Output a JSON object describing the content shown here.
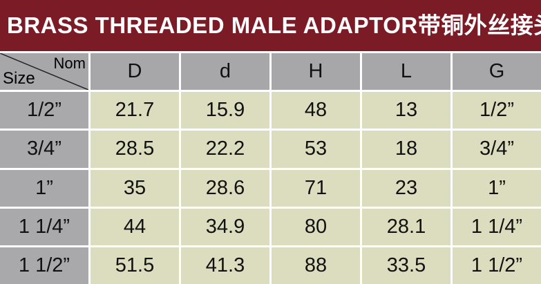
{
  "header": {
    "title": "BRASS THREADED MALE ADAPTOR带铜外丝接头"
  },
  "table": {
    "corner": {
      "top": "Nom",
      "bottom": "Size"
    },
    "columns": [
      "D",
      "d",
      "H",
      "L",
      "G"
    ],
    "rows": [
      [
        "1/2”",
        "21.7",
        "15.9",
        "48",
        "13",
        "1/2”"
      ],
      [
        "3/4”",
        "28.5",
        "22.2",
        "53",
        "18",
        "3/4”"
      ],
      [
        "1”",
        "35",
        "28.6",
        "71",
        "23",
        "1”"
      ],
      [
        "1 1/4”",
        "44",
        "34.9",
        "80",
        "28.1",
        "1 1/4”"
      ],
      [
        "1 1/2”",
        "51.5",
        "41.3",
        "88",
        "33.5",
        "1 1/2”"
      ]
    ]
  }
}
